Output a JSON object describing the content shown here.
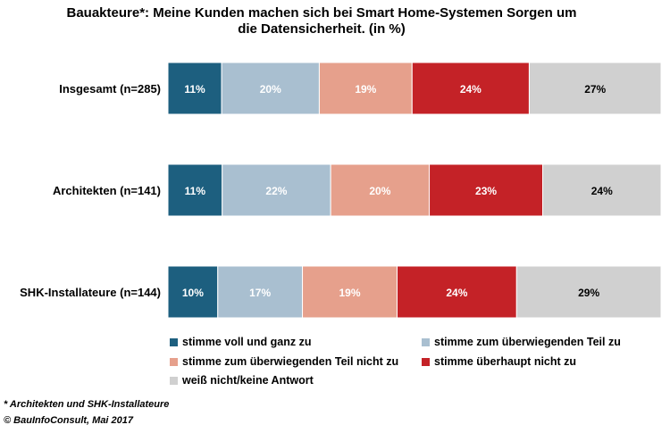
{
  "chart_data": {
    "type": "bar",
    "stacked": true,
    "orientation": "horizontal",
    "title": "Bauakteure*: Meine Kunden machen sich bei Smart Home-Systemen Sorgen um\ndie Datensicherheit. (in %)",
    "categories": [
      "Insgesamt (n=285)",
      "Architekten (n=141)",
      "SHK-Installateure (n=144)"
    ],
    "series": [
      {
        "name": "stimme voll und ganz zu",
        "color": "#1d5f7f",
        "label_color": "#ffffff",
        "values": [
          11,
          11,
          10
        ]
      },
      {
        "name": "stimme zum überwiegenden Teil zu",
        "color": "#a9bfd0",
        "label_color": "#ffffff",
        "values": [
          20,
          22,
          17
        ]
      },
      {
        "name": "stimme zum überwiegenden Teil nicht zu",
        "color": "#e6a08c",
        "label_color": "#ffffff",
        "values": [
          19,
          20,
          19
        ]
      },
      {
        "name": "stimme überhaupt nicht zu",
        "color": "#c42227",
        "label_color": "#ffffff",
        "values": [
          24,
          23,
          24
        ]
      },
      {
        "name": "weiß nicht/keine Antwort",
        "color": "#d0d0d0",
        "label_color": "#000000",
        "values": [
          27,
          24,
          29
        ]
      }
    ],
    "value_suffix": "%"
  },
  "notes": {
    "footnote": "* Architekten und SHK-Installateure",
    "source": "© BauInfoConsult, Mai 2017"
  }
}
